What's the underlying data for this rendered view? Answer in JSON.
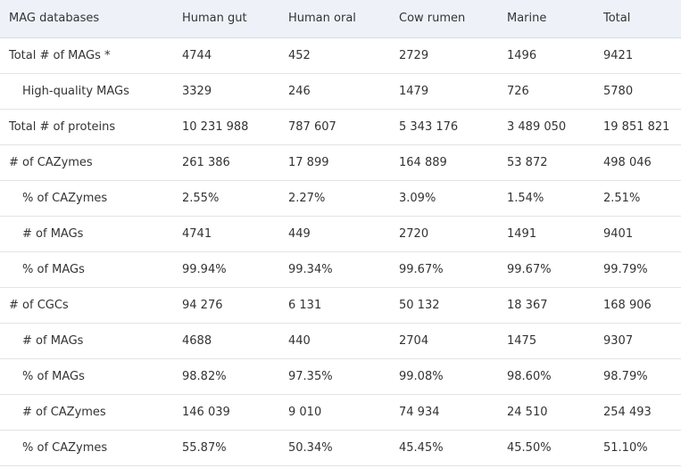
{
  "table": {
    "header": [
      "MAG databases",
      "Human gut",
      "Human oral",
      "Cow rumen",
      "Marine",
      "Total"
    ],
    "rows": [
      [
        "Total # of MAGs *",
        "4744",
        "452",
        "2729",
        "1496",
        "9421"
      ],
      [
        "High-quality MAGs",
        "3329",
        "246",
        "1479",
        "726",
        "5780"
      ],
      [
        "Total # of proteins",
        "10 231 988",
        "787 607",
        "5 343 176",
        "3 489 050",
        "19 851 821"
      ],
      [
        "# of CAZymes",
        "261 386",
        "17 899",
        "164 889",
        "53 872",
        "498 046"
      ],
      [
        "% of CAZymes",
        "2.55%",
        "2.27%",
        "3.09%",
        "1.54%",
        "2.51%"
      ],
      [
        "# of MAGs",
        "4741",
        "449",
        "2720",
        "1491",
        "9401"
      ],
      [
        "% of MAGs",
        "99.94%",
        "99.34%",
        "99.67%",
        "99.67%",
        "99.79%"
      ],
      [
        "# of CGCs",
        "94 276",
        "6 131",
        "50 132",
        "18 367",
        "168 906"
      ],
      [
        "# of MAGs",
        "4688",
        "440",
        "2704",
        "1475",
        "9307"
      ],
      [
        "% of MAGs",
        "98.82%",
        "97.35%",
        "99.08%",
        "98.60%",
        "98.79%"
      ],
      [
        "# of CAZymes",
        "146 039",
        "9 010",
        "74 934",
        "24 510",
        "254 493"
      ],
      [
        "% of CAZymes",
        "55.87%",
        "50.34%",
        "45.45%",
        "45.50%",
        "51.10%"
      ]
    ]
  }
}
